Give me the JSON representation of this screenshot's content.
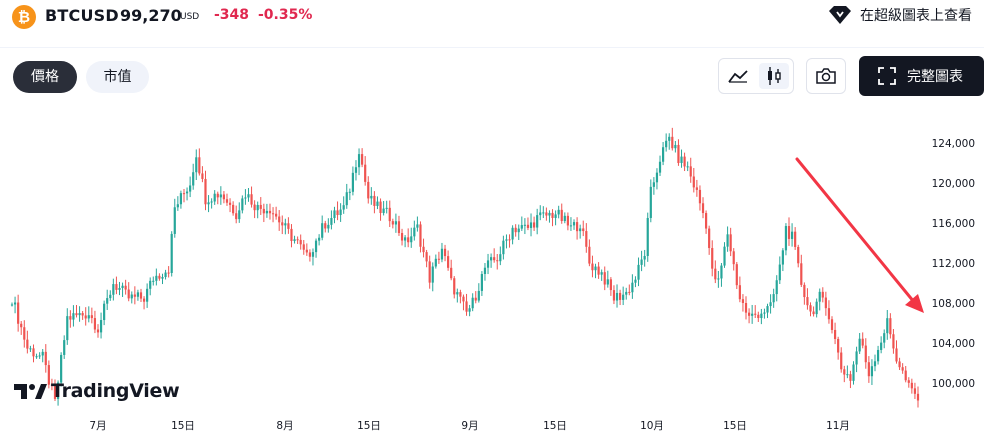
{
  "header": {
    "logo_glyph": "₿",
    "symbol": "BTCUSD",
    "price": "99,270",
    "currency": "USD",
    "change": "-348",
    "change_percent": "-0.35%",
    "advanced_link": "在超級圖表上查看"
  },
  "tabs": [
    {
      "label": "價格",
      "active": true
    },
    {
      "label": "市值",
      "active": false
    }
  ],
  "toolbar": {
    "line_icon": "line-chart-icon",
    "candle_icon": "candlestick-icon",
    "camera_icon": "camera-icon",
    "full_chart_label": "完整圖表"
  },
  "branding": {
    "name": "TradingView"
  },
  "colors": {
    "up": "#26a69a",
    "down": "#ef5350",
    "arrow": "#f23645",
    "change": "#e0284f"
  },
  "chart_data": {
    "type": "candlestick",
    "y_ticks": [
      "124,000",
      "120,000",
      "116,000",
      "112,000",
      "108,000",
      "104,000",
      "100,000"
    ],
    "ylim": [
      97500,
      126500
    ],
    "x_ticks": [
      "7月",
      "15日",
      "8月",
      "15日",
      "9月",
      "15日",
      "10月",
      "15日",
      "11月"
    ],
    "close_path": [
      [
        0,
        108500
      ],
      [
        5,
        103500
      ],
      [
        10,
        102500
      ],
      [
        14,
        98000
      ],
      [
        18,
        106500
      ],
      [
        25,
        107000
      ],
      [
        28,
        105500
      ],
      [
        33,
        110000
      ],
      [
        38,
        108500
      ],
      [
        43,
        108500
      ],
      [
        46,
        110500
      ],
      [
        51,
        111500
      ],
      [
        53,
        117500
      ],
      [
        58,
        120000
      ],
      [
        60,
        123000
      ],
      [
        63,
        118500
      ],
      [
        68,
        119000
      ],
      [
        73,
        117000
      ],
      [
        76,
        119000
      ],
      [
        80,
        117500
      ],
      [
        84,
        117500
      ],
      [
        90,
        115000
      ],
      [
        93,
        114000
      ],
      [
        96,
        112500
      ],
      [
        102,
        116000
      ],
      [
        108,
        117500
      ],
      [
        110,
        119500
      ],
      [
        113,
        123500
      ],
      [
        116,
        118500
      ],
      [
        119,
        117500
      ],
      [
        124,
        116500
      ],
      [
        128,
        114000
      ],
      [
        132,
        115500
      ],
      [
        136,
        110500
      ],
      [
        140,
        113500
      ],
      [
        143,
        110000
      ],
      [
        148,
        107000
      ],
      [
        150,
        108000
      ],
      [
        154,
        111500
      ],
      [
        158,
        112500
      ],
      [
        163,
        115500
      ],
      [
        168,
        115500
      ],
      [
        171,
        116500
      ],
      [
        177,
        117000
      ],
      [
        182,
        115500
      ],
      [
        185,
        116000
      ],
      [
        188,
        112000
      ],
      [
        192,
        111000
      ],
      [
        196,
        108500
      ],
      [
        200,
        109000
      ],
      [
        203,
        110500
      ],
      [
        206,
        113000
      ],
      [
        208,
        119000
      ],
      [
        211,
        122500
      ],
      [
        214,
        124500
      ],
      [
        217,
        122500
      ],
      [
        220,
        121500
      ],
      [
        223,
        119000
      ],
      [
        226,
        116000
      ],
      [
        228,
        111000
      ],
      [
        230,
        110000
      ],
      [
        233,
        115000
      ],
      [
        237,
        108500
      ],
      [
        240,
        106500
      ],
      [
        243,
        107000
      ],
      [
        247,
        107500
      ],
      [
        250,
        111500
      ],
      [
        252,
        115500
      ],
      [
        254,
        114500
      ],
      [
        257,
        110000
      ],
      [
        260,
        107000
      ],
      [
        263,
        108500
      ],
      [
        266,
        107000
      ],
      [
        270,
        101500
      ],
      [
        273,
        100500
      ],
      [
        276,
        104500
      ],
      [
        279,
        101000
      ],
      [
        282,
        103500
      ],
      [
        285,
        106000
      ],
      [
        288,
        102500
      ],
      [
        292,
        99500
      ],
      [
        295,
        98500
      ]
    ]
  }
}
